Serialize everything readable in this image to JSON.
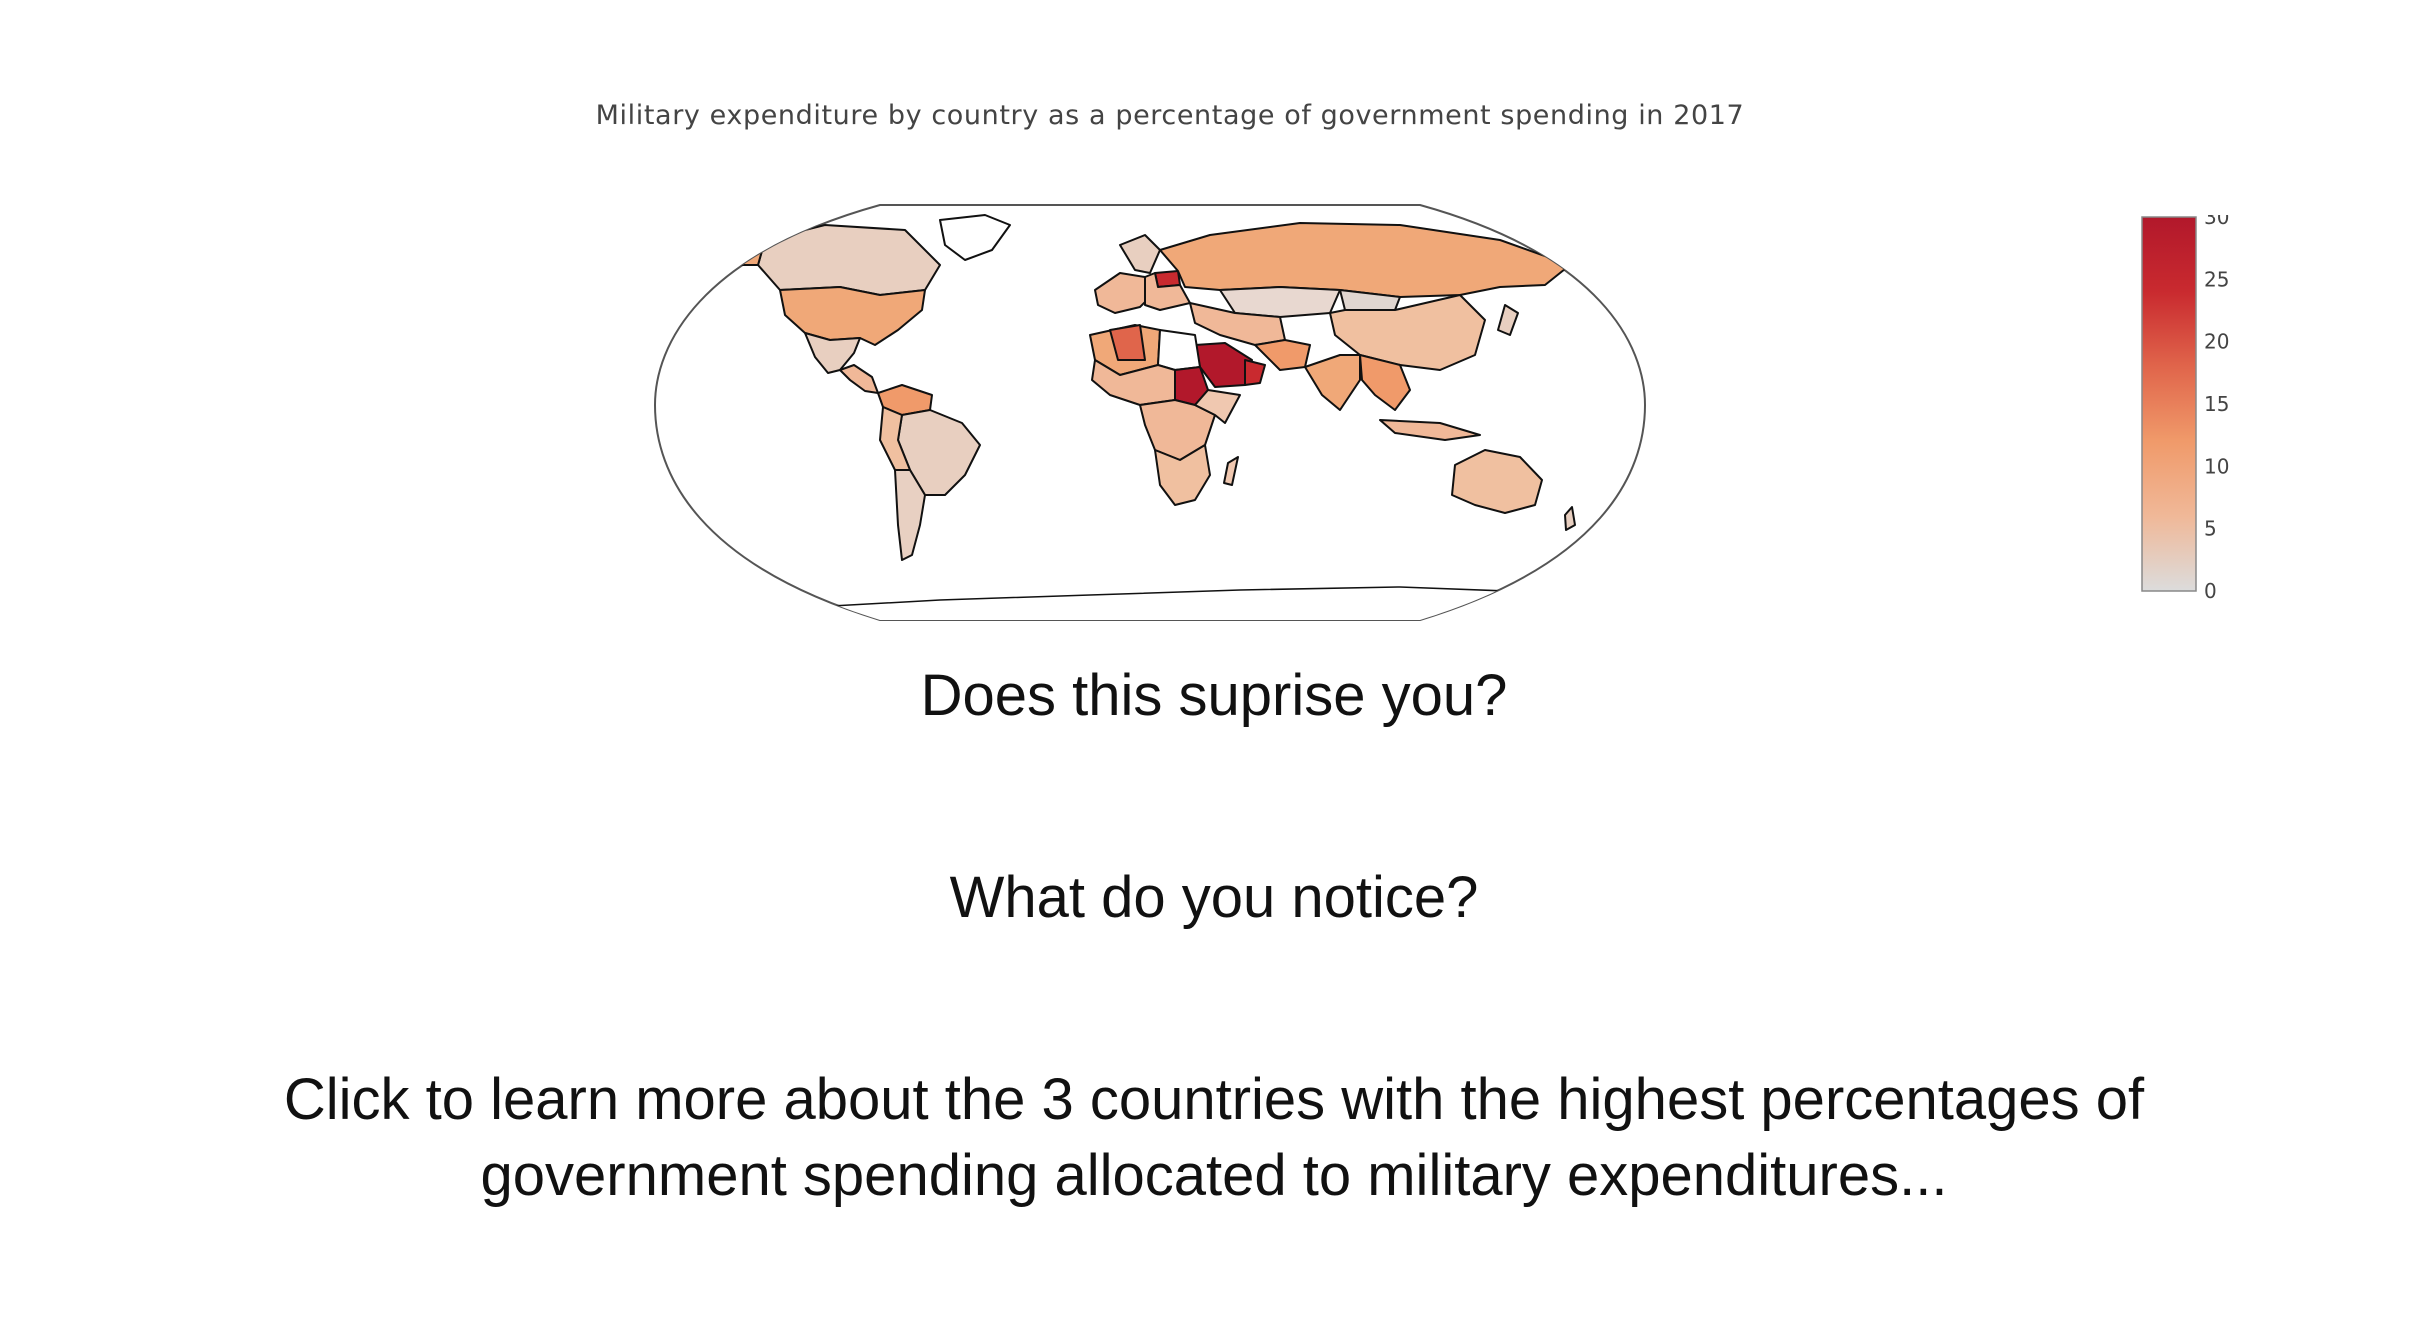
{
  "title": "Military expenditure by country as a percentage of government spending in 2017",
  "colorbar": {
    "ticks": [
      0,
      5,
      10,
      15,
      20,
      25,
      30
    ],
    "colors": [
      "#dcdcdc",
      "#f0b898",
      "#f09a6a",
      "#e0654b",
      "#c92a2f",
      "#b2182b"
    ]
  },
  "map": {
    "projection": "robinson",
    "regions": [
      {
        "name": "Canada",
        "value": 2
      },
      {
        "name": "USA",
        "value": 9
      },
      {
        "name": "Greenland",
        "value": null
      },
      {
        "name": "Mexico",
        "value": 2
      },
      {
        "name": "Brazil",
        "value": 3
      },
      {
        "name": "Colombia",
        "value": 10
      },
      {
        "name": "Russia",
        "value": 11
      },
      {
        "name": "China",
        "value": 6
      },
      {
        "name": "India",
        "value": 9
      },
      {
        "name": "Saudi Arabia",
        "value": 30
      },
      {
        "name": "Oman",
        "value": 28
      },
      {
        "name": "Sudan",
        "value": 27
      },
      {
        "name": "Algeria",
        "value": 16
      },
      {
        "name": "Australia",
        "value": 5
      },
      {
        "name": "Antarctica",
        "value": null
      }
    ]
  },
  "prompts": {
    "surprise": "Does this suprise you?",
    "notice": "What do you notice?",
    "cta": "Click to learn more about the 3 countries with the highest percentages of government spending allocated to military expenditures..."
  }
}
